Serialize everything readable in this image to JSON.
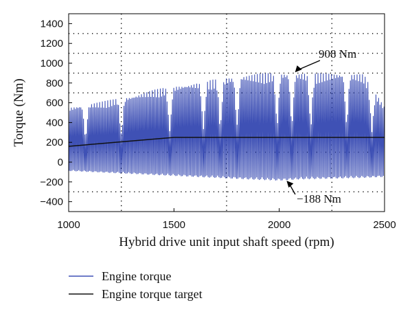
{
  "chart_data": {
    "type": "line",
    "xlabel": "Hybrid drive unit input shaft speed (rpm)",
    "ylabel": "Torque (Nm)",
    "xlim": [
      1000,
      2500
    ],
    "ylim": [
      -500,
      1500
    ],
    "x_ticks": [
      1000,
      1500,
      2000,
      2500
    ],
    "x_tick_labels": [
      "1000",
      "1500",
      "2000",
      "2500"
    ],
    "y_ticks": [
      -400,
      -200,
      0,
      200,
      400,
      600,
      800,
      1000,
      1200,
      1400
    ],
    "y_tick_labels": [
      "−400",
      "−200",
      "0",
      "200",
      "400",
      "600",
      "800",
      "1000",
      "1200",
      "1400"
    ],
    "grid": "dotted",
    "legend_position": "bottom",
    "series": [
      {
        "name": "Engine torque",
        "color": "#3f51b5",
        "representation": "oscillating envelope",
        "x": [
          1000,
          1100,
          1200,
          1300,
          1400,
          1500,
          1600,
          1700,
          1800,
          1900,
          2000,
          2100,
          2200,
          2300,
          2400,
          2500
        ],
        "upper": [
          555,
          590,
          630,
          670,
          730,
          770,
          800,
          840,
          870,
          895,
          905,
          900,
          900,
          900,
          890,
          560
        ],
        "lower": [
          -90,
          -100,
          -110,
          -120,
          -130,
          -140,
          -150,
          -160,
          -170,
          -180,
          -188,
          -175,
          -170,
          -165,
          -160,
          -150
        ]
      },
      {
        "name": "Engine torque target",
        "color": "#111111",
        "x": [
          1000,
          1500,
          2500
        ],
        "y": [
          160,
          250,
          250
        ]
      }
    ],
    "annotations": [
      {
        "label": "908 Nm",
        "x": 2070,
        "y": 908
      },
      {
        "label": "−188 Nm",
        "x": 2030,
        "y": -188
      }
    ]
  }
}
